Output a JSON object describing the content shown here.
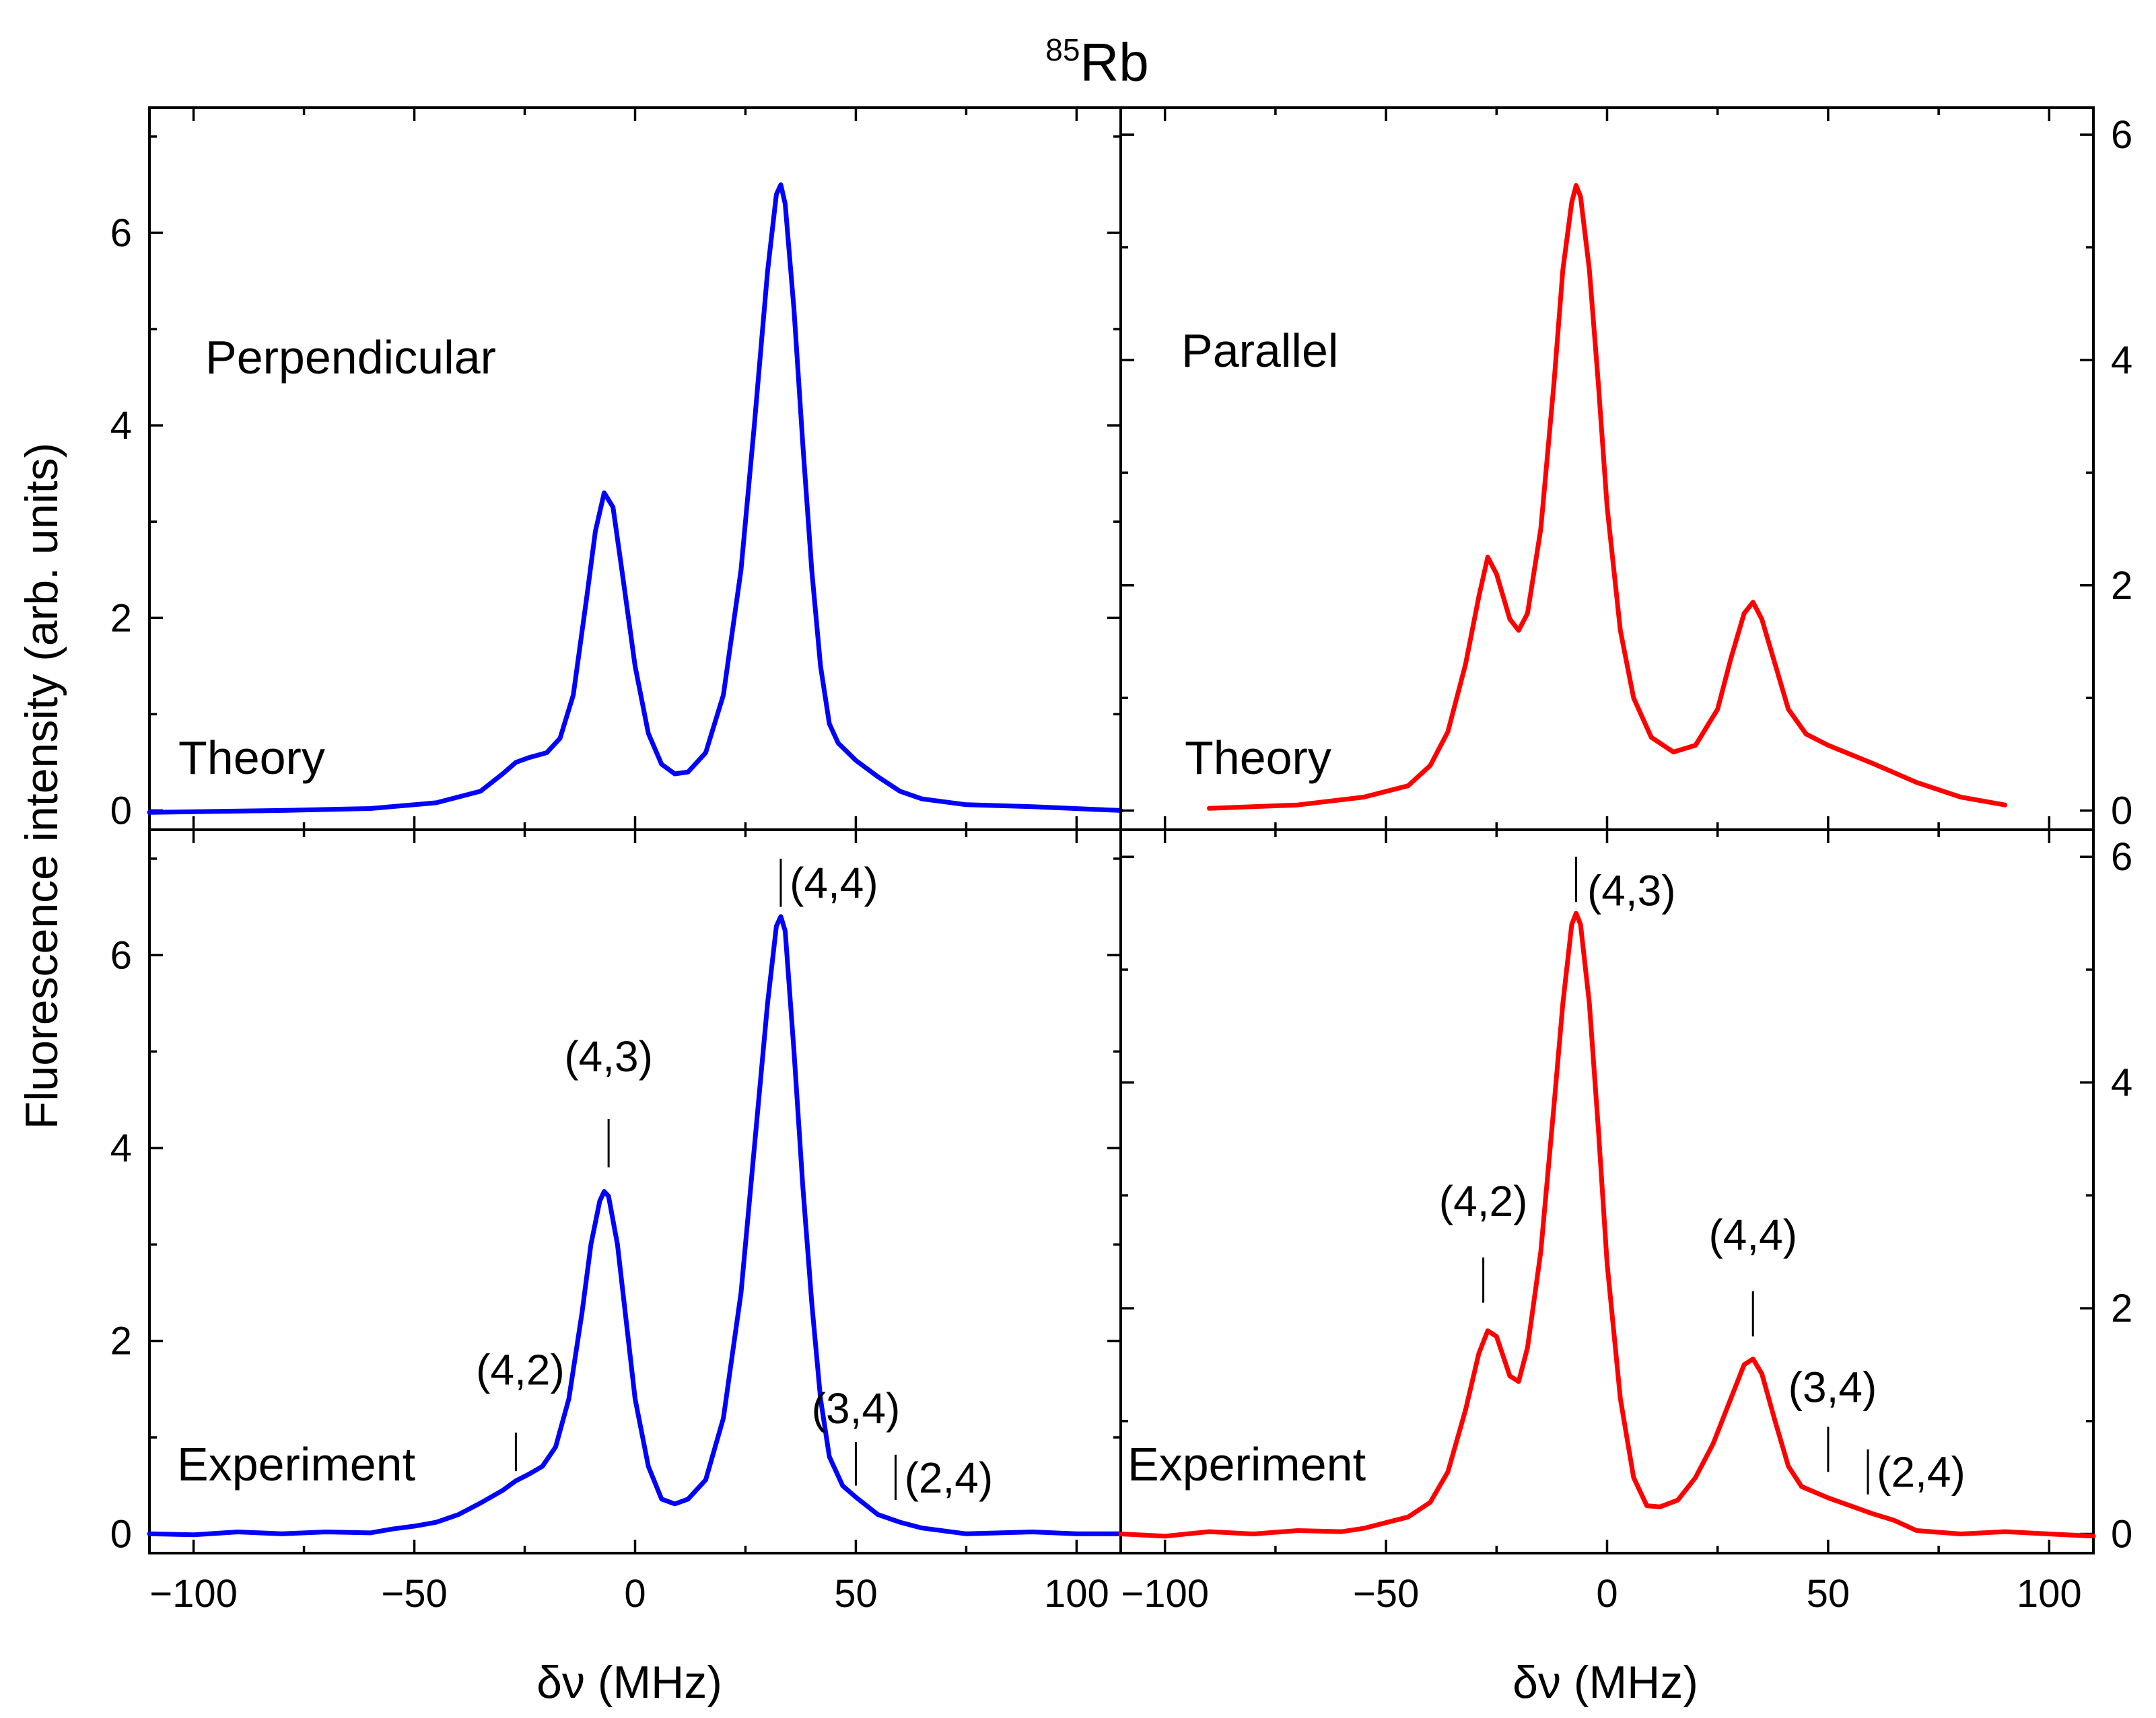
{
  "figure": {
    "title_superscript": "85",
    "title_main": "Rb",
    "ylabel": "Fluorescence intensity (arb. units)",
    "xlabel": "δν (MHz)"
  },
  "chart_data": [
    {
      "id": "top-left",
      "type": "line",
      "panel_label": "Perpendicular",
      "curve_label": "Theory",
      "color": "#0000ff",
      "xlim": [
        -110,
        110
      ],
      "ylim": [
        -0.2,
        7.3
      ],
      "x_ticks": [
        -100,
        -50,
        0,
        50,
        100
      ],
      "y_ticks": [
        0,
        2,
        4,
        6
      ],
      "y_tick_labels": [
        "0",
        "2",
        "4",
        "6"
      ],
      "y_axis_side": "left",
      "series": [
        {
          "name": "Theory",
          "points": [
            [
              -110,
              -0.02
            ],
            [
              -80,
              0.0
            ],
            [
              -60,
              0.02
            ],
            [
              -45,
              0.08
            ],
            [
              -35,
              0.2
            ],
            [
              -30,
              0.38
            ],
            [
              -27,
              0.5
            ],
            [
              -24,
              0.55
            ],
            [
              -20,
              0.6
            ],
            [
              -17,
              0.75
            ],
            [
              -14,
              1.2
            ],
            [
              -11,
              2.2
            ],
            [
              -9,
              2.9
            ],
            [
              -7,
              3.3
            ],
            [
              -5,
              3.15
            ],
            [
              -3,
              2.5
            ],
            [
              0,
              1.5
            ],
            [
              3,
              0.8
            ],
            [
              6,
              0.48
            ],
            [
              9,
              0.38
            ],
            [
              12,
              0.4
            ],
            [
              16,
              0.6
            ],
            [
              20,
              1.2
            ],
            [
              24,
              2.5
            ],
            [
              27,
              4.0
            ],
            [
              30,
              5.6
            ],
            [
              32,
              6.4
            ],
            [
              33,
              6.5
            ],
            [
              34,
              6.3
            ],
            [
              36,
              5.2
            ],
            [
              38,
              3.8
            ],
            [
              40,
              2.5
            ],
            [
              42,
              1.5
            ],
            [
              44,
              0.9
            ],
            [
              46,
              0.7
            ],
            [
              50,
              0.52
            ],
            [
              55,
              0.35
            ],
            [
              60,
              0.2
            ],
            [
              65,
              0.12
            ],
            [
              75,
              0.06
            ],
            [
              90,
              0.04
            ],
            [
              110,
              0.0
            ]
          ]
        }
      ]
    },
    {
      "id": "top-right",
      "type": "line",
      "panel_label": "Parallel",
      "curve_label": "Theory",
      "color": "#ff0000",
      "xlim": [
        -110,
        110
      ],
      "ylim": [
        -0.17,
        6.24
      ],
      "x_ticks": [
        -100,
        -50,
        0,
        50,
        100
      ],
      "y_ticks": [
        0,
        2,
        4,
        6
      ],
      "y_tick_labels": [
        "0",
        "2",
        "4",
        "6"
      ],
      "y_axis_side": "right",
      "series": [
        {
          "name": "Theory",
          "points": [
            [
              -90,
              0.02
            ],
            [
              -70,
              0.05
            ],
            [
              -55,
              0.12
            ],
            [
              -45,
              0.22
            ],
            [
              -40,
              0.4
            ],
            [
              -36,
              0.7
            ],
            [
              -32,
              1.3
            ],
            [
              -29,
              1.9
            ],
            [
              -27,
              2.25
            ],
            [
              -25,
              2.1
            ],
            [
              -22,
              1.7
            ],
            [
              -20,
              1.6
            ],
            [
              -18,
              1.75
            ],
            [
              -15,
              2.5
            ],
            [
              -12,
              3.8
            ],
            [
              -10,
              4.8
            ],
            [
              -8,
              5.4
            ],
            [
              -7,
              5.55
            ],
            [
              -6,
              5.45
            ],
            [
              -4,
              4.8
            ],
            [
              -2,
              3.8
            ],
            [
              0,
              2.7
            ],
            [
              3,
              1.6
            ],
            [
              6,
              1.0
            ],
            [
              10,
              0.65
            ],
            [
              15,
              0.52
            ],
            [
              20,
              0.58
            ],
            [
              25,
              0.9
            ],
            [
              28,
              1.35
            ],
            [
              31,
              1.75
            ],
            [
              33,
              1.85
            ],
            [
              35,
              1.7
            ],
            [
              38,
              1.3
            ],
            [
              41,
              0.9
            ],
            [
              45,
              0.68
            ],
            [
              50,
              0.58
            ],
            [
              60,
              0.42
            ],
            [
              70,
              0.25
            ],
            [
              80,
              0.12
            ],
            [
              90,
              0.05
            ]
          ]
        }
      ]
    },
    {
      "id": "bottom-left",
      "type": "line",
      "curve_label": "Experiment",
      "color": "#0000ff",
      "xlim": [
        -110,
        110
      ],
      "ylim": [
        -0.2,
        7.3
      ],
      "x_ticks": [
        -100,
        -50,
        0,
        50,
        100
      ],
      "x_tick_labels": [
        "−100",
        "−50",
        "0",
        "50",
        "100"
      ],
      "y_ticks": [
        0,
        2,
        4,
        6
      ],
      "y_tick_labels": [
        "0",
        "2",
        "4",
        "6"
      ],
      "y_axis_side": "left",
      "series": [
        {
          "name": "Experiment",
          "points": [
            [
              -110,
              0.0
            ],
            [
              -100,
              -0.01
            ],
            [
              -90,
              0.02
            ],
            [
              -80,
              0.0
            ],
            [
              -70,
              0.02
            ],
            [
              -60,
              0.01
            ],
            [
              -55,
              0.05
            ],
            [
              -50,
              0.08
            ],
            [
              -45,
              0.12
            ],
            [
              -40,
              0.2
            ],
            [
              -35,
              0.32
            ],
            [
              -30,
              0.45
            ],
            [
              -27,
              0.55
            ],
            [
              -24,
              0.62
            ],
            [
              -21,
              0.7
            ],
            [
              -18,
              0.9
            ],
            [
              -15,
              1.4
            ],
            [
              -12,
              2.3
            ],
            [
              -10,
              3.0
            ],
            [
              -8,
              3.45
            ],
            [
              -7,
              3.55
            ],
            [
              -6,
              3.5
            ],
            [
              -4,
              3.0
            ],
            [
              -2,
              2.2
            ],
            [
              0,
              1.4
            ],
            [
              3,
              0.7
            ],
            [
              6,
              0.36
            ],
            [
              9,
              0.31
            ],
            [
              12,
              0.36
            ],
            [
              16,
              0.56
            ],
            [
              20,
              1.2
            ],
            [
              24,
              2.5
            ],
            [
              27,
              4.0
            ],
            [
              30,
              5.5
            ],
            [
              32,
              6.3
            ],
            [
              33,
              6.4
            ],
            [
              34,
              6.25
            ],
            [
              36,
              5.0
            ],
            [
              38,
              3.6
            ],
            [
              40,
              2.4
            ],
            [
              42,
              1.4
            ],
            [
              44,
              0.8
            ],
            [
              47,
              0.5
            ],
            [
              50,
              0.38
            ],
            [
              55,
              0.2
            ],
            [
              60,
              0.12
            ],
            [
              65,
              0.06
            ],
            [
              75,
              0.0
            ],
            [
              90,
              0.02
            ],
            [
              100,
              0.0
            ],
            [
              110,
              0.0
            ]
          ]
        }
      ],
      "annotations": [
        {
          "label": "(4,2)",
          "x": -27,
          "marker_y": [
            0.65,
            1.05
          ],
          "label_x": -26,
          "label_y": 1.7,
          "anchor": "middle"
        },
        {
          "label": "(4,3)",
          "x": -6,
          "marker_y": [
            3.8,
            4.3
          ],
          "label_x": -6,
          "label_y": 4.95,
          "anchor": "middle"
        },
        {
          "label": "(4,4)",
          "x": 33,
          "marker_y": [
            6.5,
            7.0
          ],
          "label_x": 35,
          "label_y": 6.75,
          "anchor": "start"
        },
        {
          "label": "(3,4)",
          "x": 50,
          "marker_y": [
            0.5,
            0.95
          ],
          "label_x": 50,
          "label_y": 1.3,
          "anchor": "middle"
        },
        {
          "label": "(2,4)",
          "x": 59,
          "marker_y": [
            0.35,
            0.82
          ],
          "label_x": 61,
          "label_y": 0.58,
          "anchor": "start"
        }
      ]
    },
    {
      "id": "bottom-right",
      "type": "line",
      "curve_label": "Experiment",
      "color": "#ff0000",
      "xlim": [
        -110,
        110
      ],
      "ylim": [
        -0.17,
        6.24
      ],
      "x_ticks": [
        -100,
        -50,
        0,
        50,
        100
      ],
      "x_tick_labels": [
        "−100",
        "−50",
        "0",
        "50",
        "100"
      ],
      "y_ticks": [
        0,
        2,
        4,
        6
      ],
      "y_tick_labels": [
        "0",
        "2",
        "4",
        "6"
      ],
      "y_axis_side": "right",
      "series": [
        {
          "name": "Experiment",
          "points": [
            [
              -110,
              0.0
            ],
            [
              -100,
              -0.02
            ],
            [
              -90,
              0.02
            ],
            [
              -80,
              0.0
            ],
            [
              -70,
              0.03
            ],
            [
              -60,
              0.02
            ],
            [
              -55,
              0.05
            ],
            [
              -50,
              0.1
            ],
            [
              -45,
              0.15
            ],
            [
              -40,
              0.28
            ],
            [
              -36,
              0.55
            ],
            [
              -32,
              1.1
            ],
            [
              -29,
              1.6
            ],
            [
              -27,
              1.8
            ],
            [
              -25,
              1.75
            ],
            [
              -22,
              1.4
            ],
            [
              -20,
              1.35
            ],
            [
              -18,
              1.65
            ],
            [
              -15,
              2.5
            ],
            [
              -12,
              3.8
            ],
            [
              -10,
              4.7
            ],
            [
              -8,
              5.4
            ],
            [
              -7,
              5.5
            ],
            [
              -6,
              5.4
            ],
            [
              -4,
              4.7
            ],
            [
              -2,
              3.6
            ],
            [
              0,
              2.4
            ],
            [
              3,
              1.2
            ],
            [
              6,
              0.5
            ],
            [
              9,
              0.25
            ],
            [
              12,
              0.24
            ],
            [
              16,
              0.3
            ],
            [
              20,
              0.5
            ],
            [
              24,
              0.8
            ],
            [
              28,
              1.2
            ],
            [
              31,
              1.5
            ],
            [
              33,
              1.55
            ],
            [
              35,
              1.42
            ],
            [
              38,
              1.0
            ],
            [
              41,
              0.6
            ],
            [
              44,
              0.42
            ],
            [
              50,
              0.32
            ],
            [
              55,
              0.25
            ],
            [
              60,
              0.18
            ],
            [
              65,
              0.12
            ],
            [
              70,
              0.03
            ],
            [
              80,
              0.0
            ],
            [
              90,
              0.02
            ],
            [
              100,
              0.0
            ],
            [
              110,
              -0.02
            ]
          ]
        }
      ],
      "annotations": [
        {
          "label": "(4,2)",
          "x": -28,
          "marker_y": [
            2.05,
            2.45
          ],
          "label_x": -28,
          "label_y": 2.95,
          "anchor": "middle"
        },
        {
          "label": "(4,3)",
          "x": -7,
          "marker_y": [
            5.6,
            6.0
          ],
          "label_x": -4.5,
          "label_y": 5.7,
          "anchor": "start"
        },
        {
          "label": "(4,4)",
          "x": 33,
          "marker_y": [
            1.75,
            2.15
          ],
          "label_x": 33,
          "label_y": 2.65,
          "anchor": "middle"
        },
        {
          "label": "(3,4)",
          "x": 50,
          "marker_y": [
            0.55,
            0.95
          ],
          "label_x": 51,
          "label_y": 1.3,
          "anchor": "middle"
        },
        {
          "label": "(2,4)",
          "x": 59,
          "marker_y": [
            0.35,
            0.75
          ],
          "label_x": 61,
          "label_y": 0.55,
          "anchor": "start"
        }
      ]
    }
  ]
}
